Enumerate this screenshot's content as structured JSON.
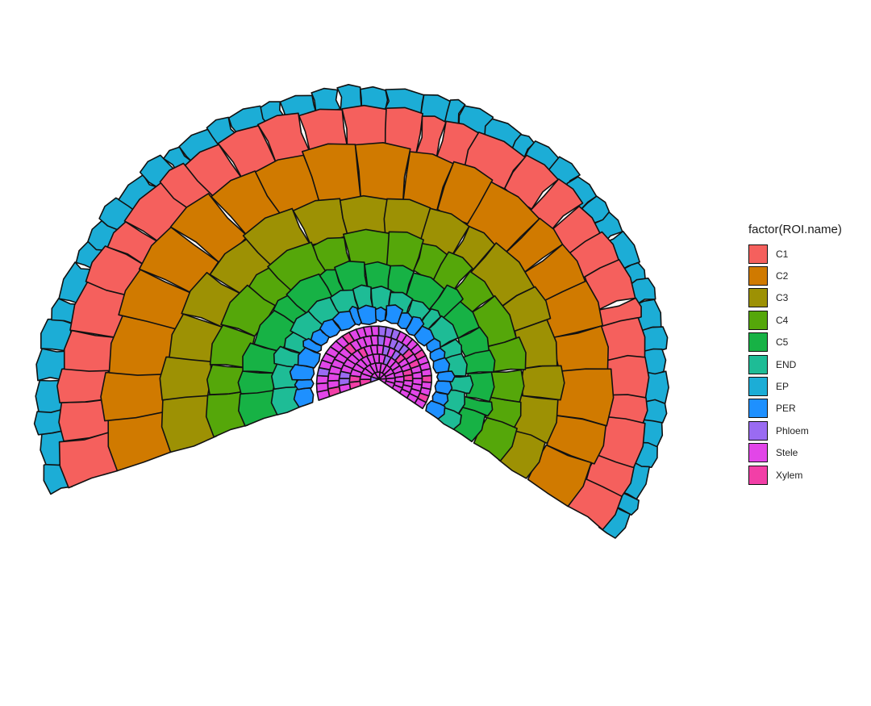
{
  "chart_data": {
    "type": "map",
    "description_source": "cell-level cross-section map; each polygon is a cell colored by ROI type",
    "legend": {
      "title": "factor(ROI.name)",
      "placement": "right",
      "items": [
        {
          "label": "C1",
          "color": "#F8766D"
        },
        {
          "label": "C2",
          "color": "#D39200"
        },
        {
          "label": "C3",
          "color": "#93AA00"
        },
        {
          "label": "C4",
          "color": "#00BA38"
        },
        {
          "label": "C5",
          "color": "#00C19F"
        },
        {
          "label": "END",
          "color": "#00B9E3"
        },
        {
          "label": "EP",
          "color": "#619CFF"
        },
        {
          "label": "PER",
          "color": "#DB72FB"
        },
        {
          "label": "Phloem",
          "color": "#FF61C3"
        },
        {
          "label": "Stele",
          "color": "#FF61C3"
        },
        {
          "label": "Xylem",
          "color": "#FF61C3"
        }
      ]
    },
    "regions": [
      {
        "name": "EP",
        "color": "#1CADD6"
      },
      {
        "name": "C1",
        "color": "#F5605D"
      },
      {
        "name": "C2",
        "color": "#D07A00"
      },
      {
        "name": "C3",
        "color": "#9D9104"
      },
      {
        "name": "C4",
        "color": "#55A70A"
      },
      {
        "name": "C5",
        "color": "#17B245"
      },
      {
        "name": "END",
        "color": "#1EBC96"
      },
      {
        "name": "PER",
        "color": "#1E90FF"
      },
      {
        "name": "Stele",
        "color": "#E246E8"
      },
      {
        "name": "Phloem",
        "color": "#9A6BF2"
      },
      {
        "name": "Xylem",
        "color": "#F23FA7"
      }
    ],
    "grid": false,
    "axes": false
  }
}
